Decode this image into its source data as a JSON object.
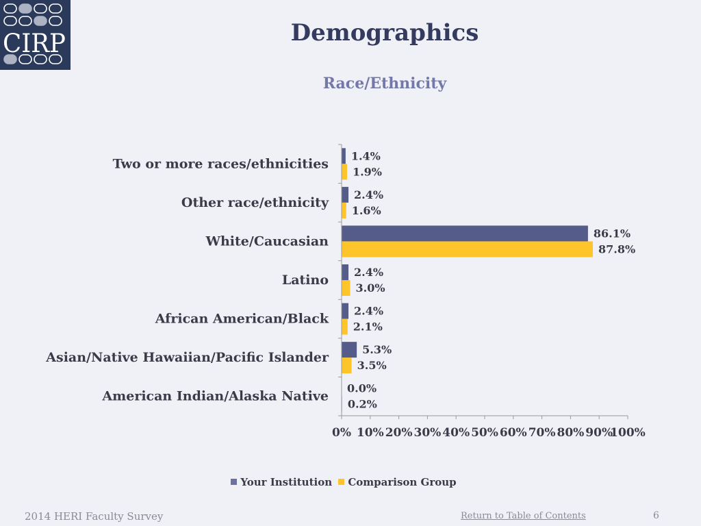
{
  "logo": {
    "text": "CIRP"
  },
  "header": {
    "title": "Demographics",
    "subtitle": "Race/Ethnicity"
  },
  "colors": {
    "your_institution": "#555c8a",
    "comparison_group": "#fdc52a",
    "axis": "#999999"
  },
  "chart_data": {
    "type": "bar",
    "orientation": "horizontal",
    "title": "Race/Ethnicity",
    "categories": [
      "Two or more races/ethnicities",
      "Other race/ethnicity",
      "White/Caucasian",
      "Latino",
      "African American/Black",
      "Asian/Native Hawaiian/Pacific Islander",
      "American Indian/Alaska Native"
    ],
    "series": [
      {
        "name": "Your Institution",
        "color": "#555c8a",
        "values": [
          1.4,
          2.4,
          86.1,
          2.4,
          2.4,
          5.3,
          0.0
        ]
      },
      {
        "name": "Comparison Group",
        "color": "#fdc52a",
        "values": [
          1.9,
          1.6,
          87.8,
          3.0,
          2.1,
          3.5,
          0.2
        ]
      }
    ],
    "value_labels": [
      [
        "1.4%",
        "2.4%",
        "86.1%",
        "2.4%",
        "2.4%",
        "5.3%",
        "0.0%"
      ],
      [
        "1.9%",
        "1.6%",
        "87.8%",
        "3.0%",
        "2.1%",
        "3.5%",
        "0.2%"
      ]
    ],
    "xlim": [
      0,
      100
    ],
    "xticks": [
      "0%",
      "10%",
      "20%",
      "30%",
      "40%",
      "50%",
      "60%",
      "70%",
      "80%",
      "90%",
      "100%"
    ],
    "grid": false,
    "legend": "bottom"
  },
  "legend": {
    "items": [
      "Your Institution",
      "Comparison Group"
    ]
  },
  "footer": {
    "left": "2014 HERI Faculty Survey",
    "link": "Return to Table of Contents",
    "page": "6"
  }
}
